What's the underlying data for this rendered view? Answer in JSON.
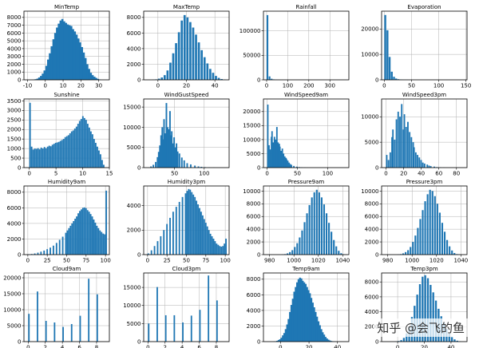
{
  "watermark": "知乎 @会飞的鱼",
  "colors": {
    "bar": "#1f77b4",
    "grid": "#b0b0b0",
    "axis": "#000000"
  },
  "chart_data": [
    {
      "type": "bar",
      "title": "MinTemp",
      "xlim": [
        -12,
        36
      ],
      "ylim": [
        0,
        8800
      ],
      "xticks": [
        -10,
        0,
        10,
        20,
        30
      ],
      "yticks": [
        0,
        1000,
        2000,
        3000,
        4000,
        5000,
        6000,
        7000,
        8000
      ],
      "bin_width": 1.2,
      "bins": [
        -8,
        -7,
        -6,
        -5,
        -4,
        -3,
        -2,
        -1,
        0,
        1,
        2,
        3,
        4,
        5,
        6,
        7,
        8,
        9,
        10,
        11,
        12,
        13,
        14,
        15,
        16,
        17,
        18,
        19,
        20,
        21,
        22,
        23,
        24,
        25,
        26,
        27,
        28,
        29,
        30
      ],
      "values": [
        10,
        30,
        80,
        150,
        300,
        500,
        800,
        1200,
        1800,
        2600,
        3400,
        4300,
        5200,
        6000,
        6700,
        7200,
        7600,
        7800,
        7500,
        7300,
        7100,
        7000,
        6900,
        6500,
        6200,
        5800,
        5300,
        4800,
        4200,
        3500,
        2800,
        2000,
        1400,
        900,
        600,
        400,
        250,
        120,
        40
      ]
    },
    {
      "type": "bar",
      "title": "MaxTemp",
      "xlim": [
        -10,
        50
      ],
      "ylim": [
        0,
        8800
      ],
      "xticks": [
        0,
        20,
        40
      ],
      "yticks": [
        0,
        2000,
        4000,
        6000,
        8000
      ],
      "bin_width": 1.5,
      "bins": [
        -4,
        -2,
        0,
        2,
        4,
        6,
        8,
        10,
        12,
        14,
        16,
        18,
        20,
        22,
        24,
        26,
        28,
        30,
        32,
        34,
        36,
        38,
        40,
        42,
        44,
        46
      ],
      "values": [
        20,
        60,
        150,
        300,
        600,
        1200,
        2200,
        3400,
        4700,
        6100,
        7600,
        8300,
        8000,
        7400,
        6700,
        5800,
        4800,
        3800,
        2900,
        2100,
        1400,
        900,
        500,
        250,
        100,
        30
      ]
    },
    {
      "type": "bar",
      "title": "Rainfall",
      "xlim": [
        -15,
        390
      ],
      "ylim": [
        0,
        140000
      ],
      "xticks": [
        0,
        100,
        200,
        300
      ],
      "yticks": [
        0,
        50000,
        100000
      ],
      "bin_width": 8,
      "bins": [
        0,
        10,
        20,
        30,
        40,
        50,
        60,
        70
      ],
      "values": [
        132000,
        7000,
        2200,
        900,
        400,
        200,
        100,
        50
      ]
    },
    {
      "type": "bar",
      "title": "Evaporation",
      "xlim": [
        -5,
        152
      ],
      "ylim": [
        0,
        27000
      ],
      "xticks": [
        0,
        50,
        100,
        150
      ],
      "yticks": [
        0,
        10000,
        20000
      ],
      "bin_width": 3.5,
      "bins": [
        0,
        4,
        8,
        12,
        16,
        20,
        24,
        28,
        32,
        36,
        40,
        50,
        60
      ],
      "values": [
        25500,
        19500,
        9000,
        3200,
        1200,
        500,
        250,
        120,
        60,
        30,
        20,
        10,
        5
      ]
    },
    {
      "type": "bar",
      "title": "Sunshine",
      "xlim": [
        -1,
        15
      ],
      "ylim": [
        0,
        3600
      ],
      "xticks": [
        0,
        5,
        10,
        15
      ],
      "yticks": [
        0,
        500,
        1000,
        1500,
        2000,
        2500,
        3000,
        3500
      ],
      "bin_width": 0.28,
      "bins": [
        0,
        0.3,
        0.6,
        0.9,
        1.2,
        1.5,
        1.8,
        2.1,
        2.4,
        2.7,
        3,
        3.3,
        3.6,
        3.9,
        4.2,
        4.5,
        4.8,
        5.1,
        5.4,
        5.7,
        6,
        6.3,
        6.6,
        6.9,
        7.2,
        7.5,
        7.8,
        8.1,
        8.4,
        8.7,
        9,
        9.3,
        9.6,
        9.9,
        10.2,
        10.5,
        10.8,
        11.1,
        11.4,
        11.7,
        12,
        12.3,
        12.6,
        12.9,
        13.2,
        13.5,
        13.8
      ],
      "values": [
        3400,
        1100,
        950,
        1000,
        980,
        1020,
        960,
        1050,
        1000,
        1080,
        1020,
        1100,
        1150,
        1120,
        1200,
        1250,
        1300,
        1320,
        1350,
        1400,
        1450,
        1500,
        1600,
        1650,
        1700,
        1800,
        1900,
        1950,
        2050,
        2150,
        2300,
        2450,
        2550,
        2700,
        2600,
        2500,
        2300,
        2100,
        1900,
        1750,
        1500,
        1300,
        1100,
        900,
        700,
        400,
        150
      ]
    },
    {
      "type": "bar",
      "title": "WindGustSpeed",
      "xlim": [
        -2,
        142
      ],
      "ylim": [
        0,
        17000
      ],
      "xticks": [
        50,
        100
      ],
      "yticks": [
        0,
        5000,
        10000,
        15000
      ],
      "bin_width": 2.6,
      "bins": [
        9,
        13,
        17,
        20,
        22,
        24,
        26,
        28,
        30,
        31,
        33,
        35,
        37,
        39,
        41,
        43,
        44,
        46,
        48,
        50,
        52,
        54,
        57,
        61,
        65,
        70,
        76,
        83,
        89,
        94,
        100,
        107,
        115
      ],
      "values": [
        300,
        700,
        1400,
        2600,
        3900,
        5500,
        8000,
        10000,
        7000,
        12000,
        8500,
        16000,
        10000,
        9500,
        14000,
        8000,
        9000,
        6000,
        7500,
        5000,
        6000,
        4000,
        3500,
        2500,
        1800,
        1100,
        800,
        500,
        300,
        200,
        120,
        70,
        30
      ]
    },
    {
      "type": "bar",
      "title": "WindSpeed9am",
      "xlim": [
        -6,
        135
      ],
      "ylim": [
        0,
        24500
      ],
      "xticks": [
        0,
        50,
        100
      ],
      "yticks": [
        0,
        5000,
        10000,
        15000,
        20000
      ],
      "bin_width": 2.4,
      "bins": [
        0,
        2,
        4,
        6,
        7,
        9,
        11,
        13,
        15,
        17,
        19,
        20,
        22,
        24,
        26,
        28,
        30,
        31,
        33,
        35,
        37,
        39,
        43,
        48,
        52,
        56,
        61,
        65
      ],
      "values": [
        22500,
        8000,
        6500,
        11000,
        13000,
        9000,
        11000,
        10000,
        14500,
        9000,
        8500,
        7500,
        6000,
        6800,
        5000,
        4000,
        3500,
        3000,
        2500,
        1800,
        1300,
        1000,
        600,
        350,
        200,
        100,
        50,
        20
      ]
    },
    {
      "type": "bar",
      "title": "WindSpeed3pm",
      "xlim": [
        -5,
        92
      ],
      "ylim": [
        0,
        13500
      ],
      "xticks": [
        0,
        20,
        40,
        60,
        80
      ],
      "yticks": [
        0,
        5000,
        10000
      ],
      "bin_width": 1.7,
      "bins": [
        0,
        2,
        4,
        6,
        7,
        9,
        11,
        13,
        15,
        17,
        19,
        20,
        22,
        24,
        26,
        28,
        30,
        31,
        33,
        35,
        37,
        39,
        41,
        43,
        46,
        48,
        50,
        54,
        57,
        61,
        65
      ],
      "values": [
        2500,
        1500,
        3000,
        6000,
        7500,
        5500,
        9500,
        11000,
        10000,
        12500,
        7500,
        10500,
        8000,
        9000,
        7000,
        6000,
        5000,
        4000,
        3000,
        2500,
        2000,
        1500,
        1000,
        800,
        600,
        400,
        300,
        200,
        100,
        60,
        30
      ]
    },
    {
      "type": "bar",
      "title": "Humidity9am",
      "xlim": [
        -5,
        105
      ],
      "ylim": [
        0,
        8800
      ],
      "xticks": [
        0,
        25,
        50,
        75,
        100
      ],
      "yticks": [
        0,
        2000,
        4000,
        6000,
        8000
      ],
      "bin_width": 1.9,
      "bins": [
        0,
        4,
        8,
        12,
        16,
        20,
        24,
        28,
        32,
        36,
        40,
        44,
        48,
        50,
        52,
        54,
        56,
        58,
        60,
        62,
        64,
        66,
        68,
        70,
        72,
        74,
        76,
        78,
        80,
        82,
        84,
        86,
        88,
        90,
        92,
        94,
        96,
        98,
        100
      ],
      "values": [
        40,
        80,
        150,
        250,
        380,
        520,
        700,
        900,
        1150,
        1500,
        1900,
        2300,
        2800,
        3100,
        3400,
        3700,
        4000,
        4300,
        4600,
        4900,
        5300,
        5600,
        5800,
        6000,
        6050,
        5950,
        5700,
        5500,
        5200,
        4900,
        4500,
        4100,
        3700,
        3400,
        3100,
        2900,
        2700,
        2600,
        8200
      ]
    },
    {
      "type": "bar",
      "title": "Humidity3pm",
      "xlim": [
        -5,
        105
      ],
      "ylim": [
        0,
        5600
      ],
      "xticks": [
        0,
        25,
        50,
        75,
        100
      ],
      "yticks": [
        0,
        2000,
        4000
      ],
      "bin_width": 1.9,
      "bins": [
        0,
        4,
        8,
        12,
        16,
        20,
        24,
        28,
        32,
        36,
        40,
        44,
        48,
        50,
        52,
        54,
        56,
        58,
        60,
        62,
        64,
        66,
        68,
        70,
        72,
        74,
        76,
        78,
        80,
        82,
        84,
        86,
        88,
        90,
        92,
        94,
        96,
        98,
        100
      ],
      "values": [
        100,
        350,
        700,
        1100,
        1500,
        2000,
        2500,
        3000,
        3500,
        3900,
        4300,
        4700,
        5000,
        5200,
        5350,
        5300,
        5100,
        4900,
        4700,
        4400,
        4100,
        3800,
        3500,
        3200,
        2900,
        2600,
        2300,
        2000,
        1700,
        1500,
        1300,
        1100,
        900,
        800,
        700,
        650,
        700,
        900,
        1300
      ]
    },
    {
      "type": "bar",
      "title": "Pressure9am",
      "xlim": [
        975,
        1045
      ],
      "ylim": [
        0,
        10800
      ],
      "xticks": [
        980,
        1000,
        1020,
        1040
      ],
      "yticks": [
        0,
        2000,
        4000,
        6000,
        8000,
        10000
      ],
      "bin_width": 1.4,
      "bins": [
        990,
        992,
        994,
        996,
        998,
        1000,
        1002,
        1004,
        1006,
        1008,
        1010,
        1012,
        1014,
        1016,
        1018,
        1020,
        1022,
        1024,
        1026,
        1028,
        1030,
        1032,
        1034,
        1036,
        1038,
        1040
      ],
      "values": [
        30,
        80,
        200,
        400,
        700,
        1200,
        1800,
        2700,
        3800,
        5100,
        6500,
        7800,
        9000,
        9800,
        10200,
        9800,
        9000,
        7900,
        6500,
        5000,
        3600,
        2300,
        1300,
        600,
        220,
        60
      ]
    },
    {
      "type": "bar",
      "title": "Pressure3pm",
      "xlim": [
        975,
        1045
      ],
      "ylim": [
        0,
        10800
      ],
      "xticks": [
        980,
        1000,
        1020,
        1040
      ],
      "yticks": [
        0,
        2000,
        4000,
        6000,
        8000,
        10000
      ],
      "bin_width": 1.4,
      "bins": [
        988,
        990,
        992,
        994,
        996,
        998,
        1000,
        1002,
        1004,
        1006,
        1008,
        1010,
        1012,
        1014,
        1016,
        1018,
        1020,
        1022,
        1024,
        1026,
        1028,
        1030,
        1032,
        1034,
        1036,
        1038
      ],
      "values": [
        30,
        80,
        200,
        400,
        700,
        1200,
        2000,
        3000,
        4200,
        5600,
        7000,
        8400,
        9500,
        10200,
        10000,
        9200,
        8000,
        6600,
        5000,
        3600,
        2300,
        1300,
        650,
        250,
        80,
        20
      ]
    },
    {
      "type": "bar",
      "title": "Cloud9am",
      "xlim": [
        -0.5,
        9.5
      ],
      "ylim": [
        0,
        21500
      ],
      "xticks": [
        0,
        2,
        4,
        6,
        8
      ],
      "yticks": [
        0,
        5000,
        10000,
        15000,
        20000
      ],
      "bin_width": 0.17,
      "bins": [
        0,
        1,
        2,
        3,
        4,
        5,
        6,
        7,
        8
      ],
      "values": [
        8700,
        15700,
        6500,
        6000,
        4600,
        5500,
        8100,
        19700,
        14800
      ]
    },
    {
      "type": "bar",
      "title": "Cloud3pm",
      "xlim": [
        -0.5,
        9.5
      ],
      "ylim": [
        0,
        19000
      ],
      "xticks": [
        0,
        2,
        4,
        6,
        8
      ],
      "yticks": [
        0,
        5000,
        10000,
        15000
      ],
      "bin_width": 0.17,
      "bins": [
        0,
        1,
        2,
        3,
        4,
        5,
        6,
        7,
        8
      ],
      "values": [
        5000,
        15100,
        7300,
        7300,
        5300,
        7200,
        8800,
        18300,
        11400
      ]
    },
    {
      "type": "bar",
      "title": "Temp9am",
      "xlim": [
        -12,
        48
      ],
      "ylim": [
        0,
        8800
      ],
      "xticks": [
        0,
        20,
        40
      ],
      "yticks": [
        0,
        2000,
        4000,
        6000,
        8000
      ],
      "bin_width": 1.3,
      "bins": [
        -5,
        -4,
        -3,
        -2,
        -1,
        0,
        1,
        2,
        3,
        4,
        5,
        6,
        7,
        8,
        9,
        10,
        11,
        12,
        13,
        14,
        15,
        16,
        17,
        18,
        19,
        20,
        21,
        22,
        23,
        24,
        25,
        26,
        27,
        28,
        29,
        30,
        31,
        32,
        33,
        34,
        35,
        36,
        37,
        38
      ],
      "values": [
        20,
        50,
        100,
        200,
        300,
        500,
        800,
        1100,
        1600,
        2200,
        2900,
        3800,
        4700,
        5500,
        6400,
        7000,
        7600,
        8000,
        8200,
        8100,
        7800,
        7600,
        7400,
        7000,
        6600,
        6200,
        5600,
        5000,
        4400,
        3800,
        3200,
        2600,
        2100,
        1600,
        1200,
        900,
        600,
        400,
        250,
        150,
        80,
        40,
        20,
        10
      ]
    },
    {
      "type": "bar",
      "title": "Temp3pm",
      "xlim": [
        -12,
        52
      ],
      "ylim": [
        0,
        9200
      ],
      "xticks": [
        0,
        20,
        40
      ],
      "yticks": [
        0,
        2000,
        4000,
        6000,
        8000
      ],
      "bin_width": 1.4,
      "bins": [
        -2,
        0,
        2,
        4,
        6,
        8,
        10,
        12,
        14,
        16,
        18,
        20,
        22,
        24,
        26,
        28,
        30,
        32,
        34,
        36,
        38,
        40,
        42,
        44,
        46
      ],
      "values": [
        20,
        80,
        200,
        500,
        1100,
        2000,
        3300,
        4800,
        6300,
        7700,
        8700,
        8900,
        8500,
        7600,
        6600,
        5500,
        4400,
        3400,
        2500,
        1700,
        1100,
        600,
        300,
        120,
        40
      ]
    }
  ]
}
